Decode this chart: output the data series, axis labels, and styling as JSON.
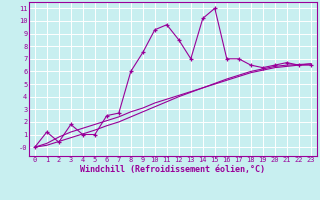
{
  "xlabel": "Windchill (Refroidissement éolien,°C)",
  "background_color": "#c8eff0",
  "grid_color": "#ffffff",
  "line_color": "#990099",
  "xlim": [
    -0.5,
    23.5
  ],
  "ylim": [
    -0.7,
    11.5
  ],
  "xticks": [
    0,
    1,
    2,
    3,
    4,
    5,
    6,
    7,
    8,
    9,
    10,
    11,
    12,
    13,
    14,
    15,
    16,
    17,
    18,
    19,
    20,
    21,
    22,
    23
  ],
  "yticks": [
    0,
    1,
    2,
    3,
    4,
    5,
    6,
    7,
    8,
    9,
    10,
    11
  ],
  "ytick_labels": [
    "-0",
    "1",
    "2",
    "3",
    "4",
    "5",
    "6",
    "7",
    "8",
    "9",
    "10",
    "11"
  ],
  "curve1_x": [
    0,
    1,
    2,
    3,
    4,
    5,
    6,
    7,
    8,
    9,
    10,
    11,
    12,
    13,
    14,
    15,
    16,
    17,
    18,
    19,
    20,
    21,
    22,
    23
  ],
  "curve1_y": [
    0.0,
    1.2,
    0.4,
    1.8,
    1.0,
    1.0,
    2.5,
    2.7,
    6.0,
    7.5,
    9.3,
    9.7,
    8.5,
    7.0,
    10.2,
    11.0,
    7.0,
    7.0,
    6.5,
    6.3,
    6.5,
    6.7,
    6.5,
    6.5
  ],
  "curve2_x": [
    0,
    1,
    2,
    3,
    4,
    5,
    6,
    7,
    8,
    9,
    10,
    11,
    12,
    13,
    14,
    15,
    16,
    17,
    18,
    19,
    20,
    21,
    22,
    23
  ],
  "curve2_y": [
    0.0,
    0.3,
    0.8,
    1.2,
    1.5,
    1.8,
    2.1,
    2.4,
    2.8,
    3.1,
    3.5,
    3.8,
    4.1,
    4.4,
    4.7,
    5.0,
    5.3,
    5.6,
    5.9,
    6.1,
    6.3,
    6.4,
    6.5,
    6.6
  ],
  "curve3_x": [
    0,
    1,
    2,
    3,
    4,
    5,
    6,
    7,
    8,
    9,
    10,
    11,
    12,
    13,
    14,
    15,
    16,
    17,
    18,
    19,
    20,
    21,
    22,
    23
  ],
  "curve3_y": [
    0.0,
    0.15,
    0.45,
    0.75,
    1.05,
    1.35,
    1.7,
    2.0,
    2.4,
    2.8,
    3.2,
    3.6,
    4.0,
    4.35,
    4.7,
    5.05,
    5.4,
    5.7,
    6.0,
    6.2,
    6.4,
    6.5,
    6.55,
    6.6
  ],
  "tick_fontsize": 5.0,
  "label_fontsize": 6.0
}
